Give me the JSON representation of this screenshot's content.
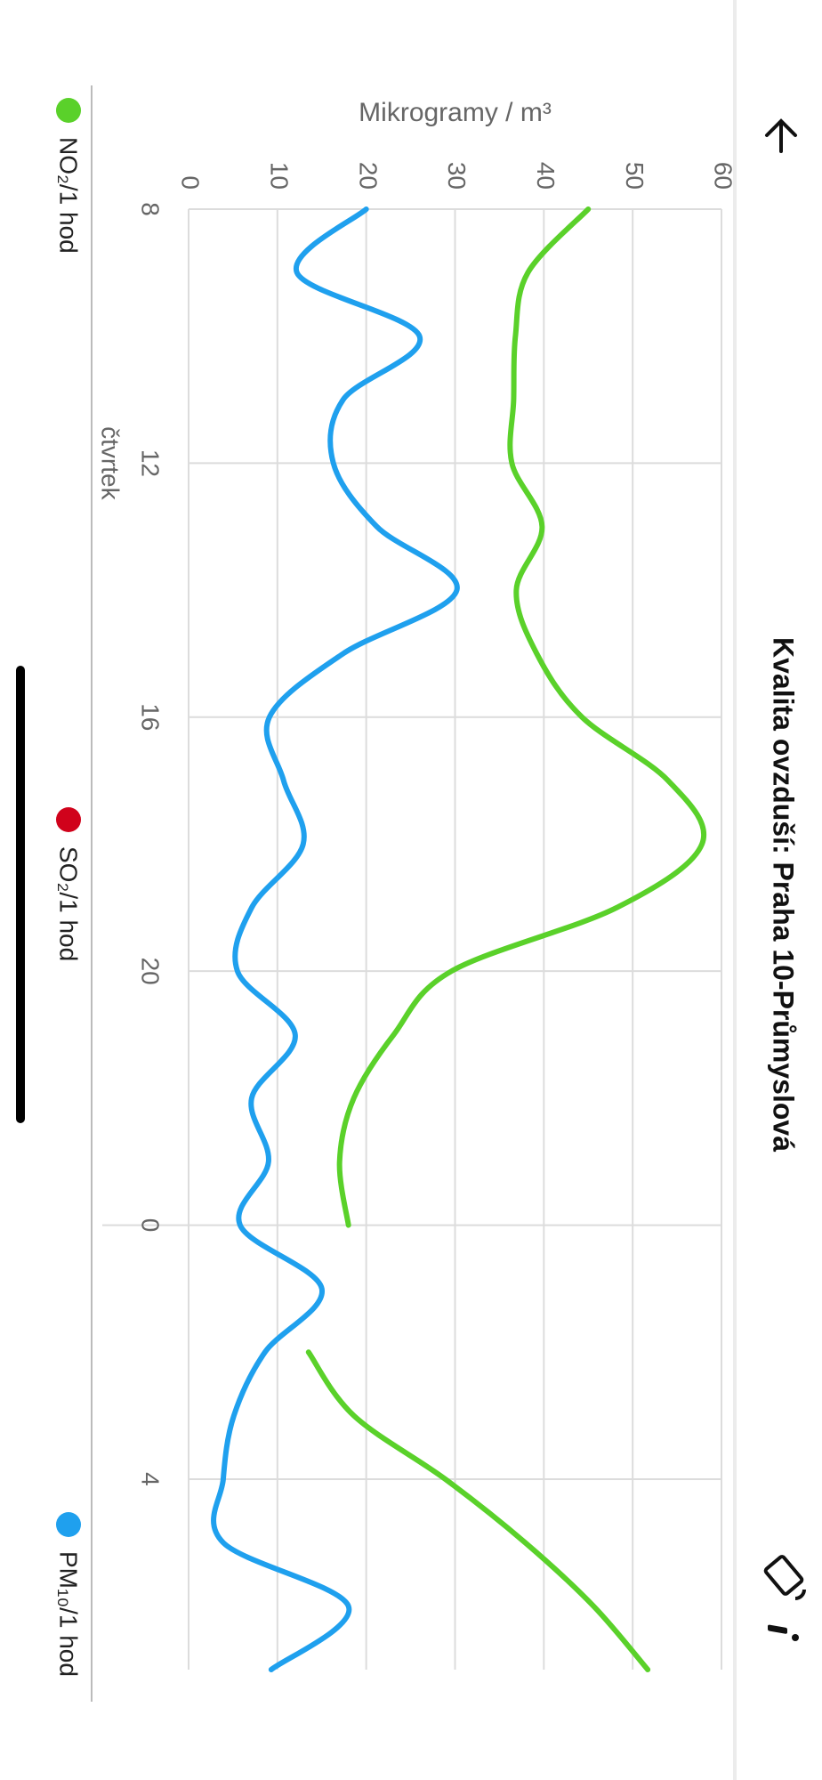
{
  "app_bar": {
    "title": "Kvalita ovzduší: Praha 10-Průmyslová"
  },
  "chart_data": {
    "type": "line",
    "y_label": "Mikrogramy / m³",
    "x": [
      8,
      9,
      10,
      11,
      12,
      13,
      14,
      15,
      16,
      17,
      18,
      19,
      20,
      21,
      22,
      23,
      24,
      25,
      26,
      27,
      28,
      29,
      30,
      31
    ],
    "xlim": [
      8,
      31
    ],
    "xticks": [
      8,
      12,
      16,
      20,
      {
        "value": 24,
        "label": "0"
      },
      {
        "value": 28,
        "label": "4"
      }
    ],
    "annotations": [
      {
        "text": "čtvrtek",
        "x": 12
      }
    ],
    "ylim": [
      0,
      60
    ],
    "yticks": [
      0,
      10,
      20,
      30,
      40,
      50,
      60
    ],
    "grid": true,
    "series": [
      {
        "name": "NO₂/1 hod",
        "color": "#5ad12a",
        "values": [
          45,
          38.2,
          36.8,
          36.6,
          36.4,
          39.8,
          36.9,
          39.2,
          44.3,
          54,
          57.8,
          48.2,
          29.6,
          23.1,
          18.6,
          17,
          18,
          null,
          13.5,
          18.6,
          28.9,
          37.9,
          45.6,
          51.7
        ]
      },
      {
        "name": "SO₂/1 hod",
        "color": "#d0021b",
        "values": [
          null,
          null,
          null,
          null,
          null,
          null,
          null,
          null,
          null,
          null,
          null,
          null,
          null,
          null,
          null,
          null,
          null,
          null,
          null,
          null,
          null,
          null,
          null,
          null
        ]
      },
      {
        "name": "PM₁₀/1 hod",
        "color": "#1fa0ee",
        "values": [
          20,
          12.2,
          26,
          17.4,
          16.3,
          21.2,
          30.2,
          17.4,
          9.1,
          10.7,
          12.9,
          7.1,
          5.5,
          12,
          7.1,
          9,
          5.8,
          15,
          8.6,
          5.1,
          3.9,
          3.9,
          18,
          9.3
        ]
      }
    ]
  }
}
